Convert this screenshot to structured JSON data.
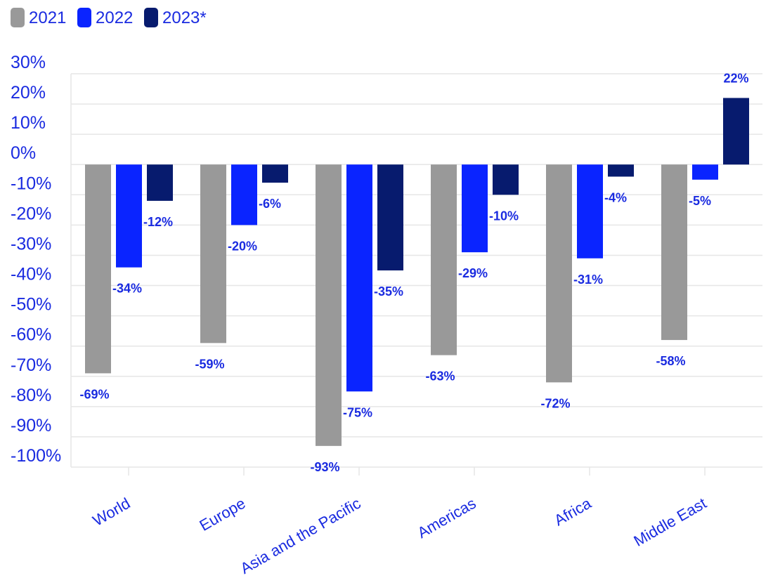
{
  "chart_data": {
    "type": "bar",
    "title": "",
    "xlabel": "",
    "ylabel": "",
    "categories": [
      "World",
      "Europe",
      "Asia and the Pacific",
      "Americas",
      "Africa",
      "Middle East"
    ],
    "series": [
      {
        "name": "2021",
        "color": "#999999",
        "values": [
          -69,
          -59,
          -93,
          -63,
          -72,
          -58
        ],
        "labels": [
          "-69%",
          "-59%",
          "-93%",
          "-63%",
          "-72%",
          "-58%"
        ]
      },
      {
        "name": "2022",
        "color": "#0a24ff",
        "values": [
          -34,
          -20,
          -75,
          -29,
          -31,
          -5
        ],
        "labels": [
          "-34%",
          "-20%",
          "-75%",
          "-29%",
          "-31%",
          "-5%"
        ]
      },
      {
        "name": "2023*",
        "color": "#071b6e",
        "values": [
          -12,
          -6,
          -35,
          -10,
          -4,
          22
        ],
        "labels": [
          "-12%",
          "-6%",
          "-35%",
          "-10%",
          "-4%",
          "22%"
        ]
      }
    ],
    "ylim": [
      -100,
      30
    ],
    "yticks": [
      30,
      20,
      10,
      0,
      -10,
      -20,
      -30,
      -40,
      -50,
      -60,
      -70,
      -80,
      -90,
      -100
    ],
    "ytick_labels": [
      "30%",
      "20%",
      "10%",
      "0%",
      "-10%",
      "-20%",
      "-30%",
      "-40%",
      "-50%",
      "-60%",
      "-70%",
      "-80%",
      "-90%",
      "-100%"
    ],
    "grid": true,
    "legend": "top-left",
    "label_color": "#1a2be0",
    "axis_text_color": "#1a2be0"
  }
}
